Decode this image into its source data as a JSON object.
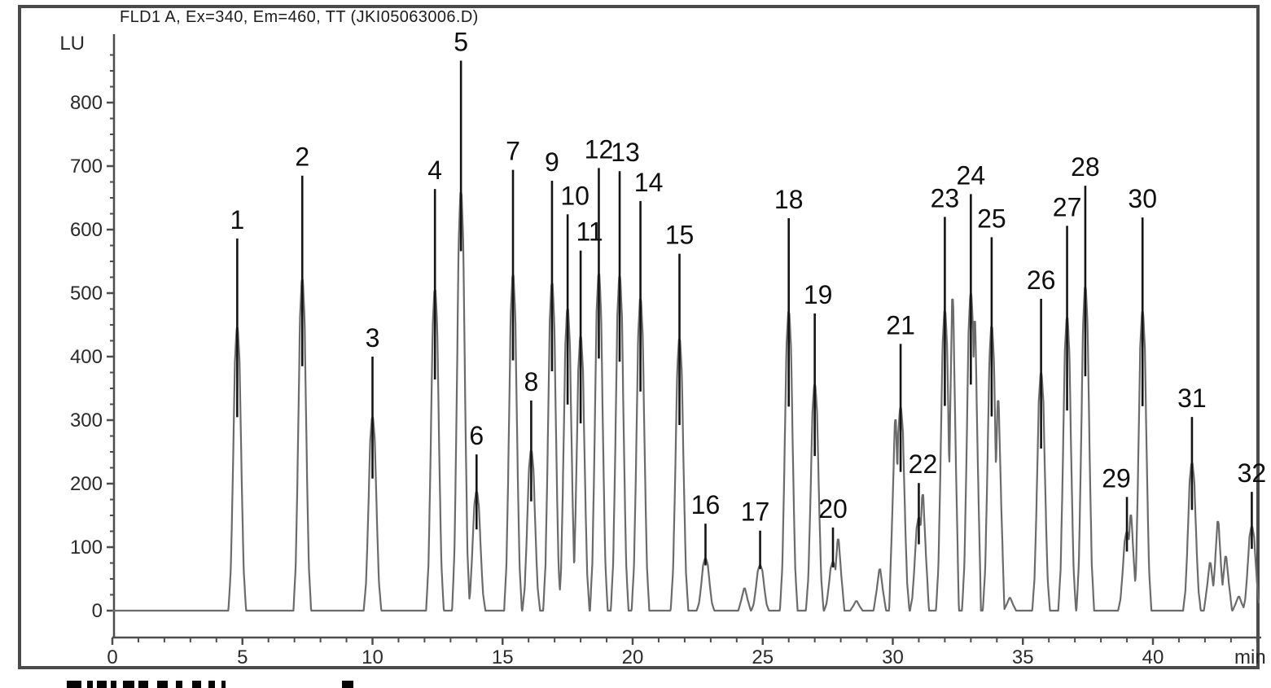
{
  "title": "FLD1 A, Ex=340, Em=460, TT (JKI05063006.D)",
  "axes": {
    "y": {
      "unit": "LU",
      "major_ticks": [
        0,
        100,
        200,
        300,
        400,
        500,
        600,
        700,
        800
      ],
      "minor_step": 25,
      "minor_max": 900
    },
    "x": {
      "unit": "min",
      "major_ticks": [
        0,
        5,
        10,
        15,
        20,
        25,
        30,
        35,
        40
      ],
      "minor_step": 1,
      "minor_max": 44
    }
  },
  "chart_data": {
    "type": "line",
    "title": "FLD1 A, Ex=340, Em=460, TT (JKI05063006.D)",
    "xlabel": "min",
    "ylabel": "LU",
    "xlim": [
      0,
      44.15
    ],
    "ylim": [
      -42,
      905
    ],
    "grid": false,
    "legend": null,
    "baseline_lu": 0,
    "peaks": [
      {
        "n": 1,
        "rt_min": 4.8,
        "height_lu": 586
      },
      {
        "n": 2,
        "rt_min": 7.3,
        "height_lu": 685
      },
      {
        "n": 3,
        "rt_min": 10.0,
        "height_lu": 400
      },
      {
        "n": 4,
        "rt_min": 12.4,
        "height_lu": 664
      },
      {
        "n": 5,
        "rt_min": 13.4,
        "height_lu": 866
      },
      {
        "n": 6,
        "rt_min": 14.0,
        "height_lu": 246
      },
      {
        "n": 7,
        "rt_min": 15.4,
        "height_lu": 694
      },
      {
        "n": 8,
        "rt_min": 16.1,
        "height_lu": 331
      },
      {
        "n": 9,
        "rt_min": 16.9,
        "height_lu": 677
      },
      {
        "n": 10,
        "rt_min": 17.5,
        "height_lu": 624
      },
      {
        "n": 11,
        "rt_min": 18.0,
        "height_lu": 567
      },
      {
        "n": 12,
        "rt_min": 18.7,
        "height_lu": 697
      },
      {
        "n": 13,
        "rt_min": 19.5,
        "height_lu": 692
      },
      {
        "n": 14,
        "rt_min": 20.3,
        "height_lu": 645
      },
      {
        "n": 15,
        "rt_min": 21.8,
        "height_lu": 562
      },
      {
        "n": 16,
        "rt_min": 22.8,
        "height_lu": 137
      },
      {
        "n": 17,
        "rt_min": 24.9,
        "height_lu": 126
      },
      {
        "n": 18,
        "rt_min": 26.0,
        "height_lu": 618
      },
      {
        "n": 19,
        "rt_min": 27.0,
        "height_lu": 468
      },
      {
        "n": 20,
        "rt_min": 27.7,
        "height_lu": 131
      },
      {
        "n": 21,
        "rt_min": 30.3,
        "height_lu": 420
      },
      {
        "n": 22,
        "rt_min": 31.0,
        "height_lu": 201
      },
      {
        "n": 23,
        "rt_min": 32.0,
        "height_lu": 620
      },
      {
        "n": 24,
        "rt_min": 33.0,
        "height_lu": 656
      },
      {
        "n": 25,
        "rt_min": 33.8,
        "height_lu": 588
      },
      {
        "n": 26,
        "rt_min": 35.7,
        "height_lu": 491
      },
      {
        "n": 27,
        "rt_min": 36.7,
        "height_lu": 606
      },
      {
        "n": 28,
        "rt_min": 37.4,
        "height_lu": 669
      },
      {
        "n": 29,
        "rt_min": 39.0,
        "height_lu": 179
      },
      {
        "n": 30,
        "rt_min": 39.6,
        "height_lu": 619
      },
      {
        "n": 31,
        "rt_min": 41.5,
        "height_lu": 305
      },
      {
        "n": 32,
        "rt_min": 43.8,
        "height_lu": 187
      }
    ],
    "unlabeled_features": [
      {
        "rt_min": 24.3,
        "height_lu": 35
      },
      {
        "rt_min": 27.9,
        "height_lu": 112
      },
      {
        "rt_min": 28.6,
        "height_lu": 15
      },
      {
        "rt_min": 29.5,
        "height_lu": 65
      },
      {
        "rt_min": 30.1,
        "height_lu": 300
      },
      {
        "rt_min": 31.15,
        "height_lu": 182
      },
      {
        "rt_min": 32.3,
        "height_lu": 490
      },
      {
        "rt_min": 33.15,
        "height_lu": 455
      },
      {
        "rt_min": 34.05,
        "height_lu": 330
      },
      {
        "rt_min": 34.5,
        "height_lu": 20
      },
      {
        "rt_min": 39.15,
        "height_lu": 150
      },
      {
        "rt_min": 42.2,
        "height_lu": 75
      },
      {
        "rt_min": 42.5,
        "height_lu": 140
      },
      {
        "rt_min": 42.8,
        "height_lu": 85
      },
      {
        "rt_min": 43.3,
        "height_lu": 22
      }
    ]
  },
  "colors": {
    "trace": "#6b6b6b",
    "peak_marker": "#141414",
    "axis": "#4d4d4d",
    "tick_text": "#2a2a2a",
    "peak_label_text": "#0f0f0f",
    "frame": "#4a4a4a",
    "background": "#ffffff"
  },
  "cropped_text_fragments": [
    {
      "x": 82,
      "w": 18
    },
    {
      "x": 107,
      "w": 7
    },
    {
      "x": 119,
      "w": 12
    },
    {
      "x": 136,
      "w": 7
    },
    {
      "x": 151,
      "w": 14
    },
    {
      "x": 170,
      "w": 12
    },
    {
      "x": 193,
      "w": 13
    },
    {
      "x": 216,
      "w": 8
    },
    {
      "x": 236,
      "w": 11
    },
    {
      "x": 256,
      "w": 8
    },
    {
      "x": 272,
      "w": 5
    },
    {
      "x": 420,
      "w": 14
    }
  ]
}
